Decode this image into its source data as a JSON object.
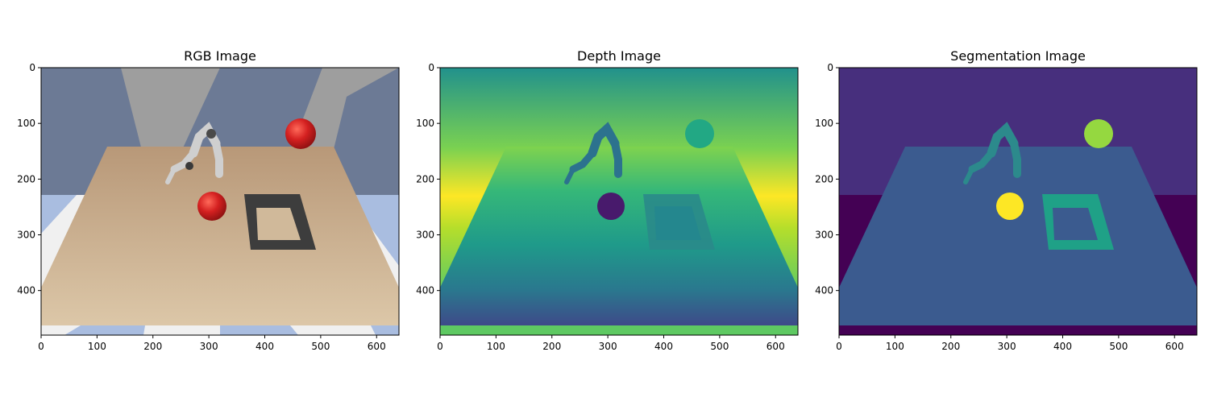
{
  "chart_data": [
    {
      "type": "image",
      "title": "RGB Image",
      "xlim": [
        0,
        640
      ],
      "ylim": [
        480,
        0
      ],
      "xticks": [
        0,
        100,
        200,
        300,
        400,
        500,
        600
      ],
      "yticks": [
        0,
        100,
        200,
        300,
        400
      ],
      "colors": {
        "sky": "#9e9e9e",
        "sky_dark": "#6c7a95",
        "floor_light": "#f0f0f0",
        "floor_blue": "#a9bde0",
        "table": "#d4b896",
        "ball": "#d42020",
        "tray": "#3d3d3d",
        "robot": "#cfcfcf"
      }
    },
    {
      "type": "image",
      "title": "Depth Image",
      "xlim": [
        0,
        640
      ],
      "ylim": [
        480,
        0
      ],
      "xticks": [
        0,
        100,
        200,
        300,
        400,
        500,
        600
      ],
      "yticks": [
        0,
        100,
        200,
        300,
        400
      ],
      "colors": {
        "near": "#3f4a8a",
        "mid": "#21918c",
        "far": "#fde725",
        "edge": "#5ec962",
        "ball_near": "#481a6c",
        "ball_far": "#22a884",
        "robot": "#2c728e"
      }
    },
    {
      "type": "image",
      "title": "Segmentation Image",
      "xlim": [
        0,
        640
      ],
      "ylim": [
        480,
        0
      ],
      "xticks": [
        0,
        100,
        200,
        300,
        400,
        500,
        600
      ],
      "yticks": [
        0,
        100,
        200,
        300,
        400
      ],
      "colors": {
        "background_top": "#472f7d",
        "background_bottom": "#440154",
        "table": "#3b5b8f",
        "robot": "#2c8a8c",
        "ball_front": "#fde725",
        "ball_back": "#95d840",
        "tray": "#1fa187"
      }
    }
  ]
}
